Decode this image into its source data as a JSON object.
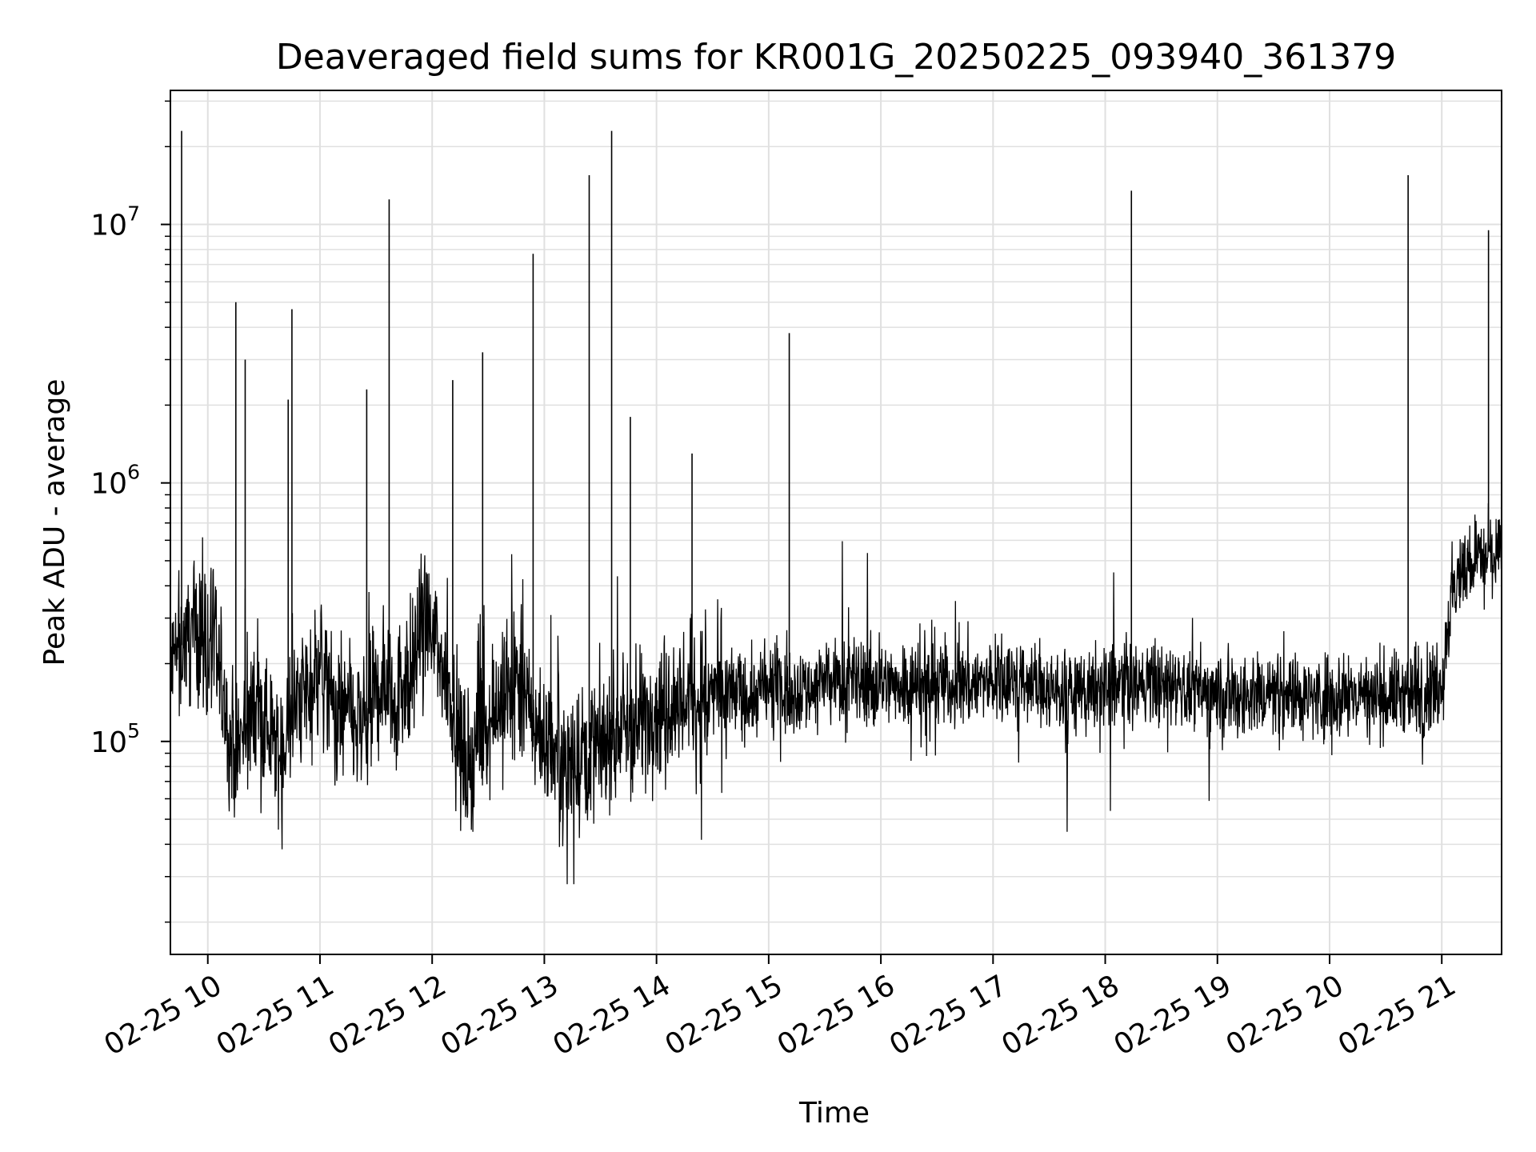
{
  "chart_data": {
    "type": "line",
    "title": "Deaveraged field sums for KR001G_20250225_093940_361379",
    "xlabel": "Time",
    "ylabel": "Peak ADU - average",
    "x_tick_labels": [
      "02-25 10",
      "02-25 11",
      "02-25 12",
      "02-25 13",
      "02-25 14",
      "02-25 15",
      "02-25 16",
      "02-25 17",
      "02-25 18",
      "02-25 19",
      "02-25 20",
      "02-25 21"
    ],
    "y_tick_labels": [
      {
        "base": "10",
        "exp": "5",
        "value": 100000
      },
      {
        "base": "10",
        "exp": "6",
        "value": 1000000
      },
      {
        "base": "10",
        "exp": "7",
        "value": 10000000
      }
    ],
    "yscale": "log",
    "ylim": [
      15000,
      33000000
    ],
    "xlim": [
      "2025-02-25 09:40",
      "2025-02-25 21:32"
    ],
    "grid": true,
    "line_color": "#000000",
    "grid_color": "#e0e0e0",
    "series": [
      {
        "name": "",
        "points": [
          [
            "2025-02-25 09:40",
            180000
          ],
          [
            "2025-02-25 09:45",
            230000
          ],
          [
            "2025-02-25 09:50",
            260000
          ],
          [
            "2025-02-25 09:55",
            280000
          ],
          [
            "2025-02-25 10:00",
            240000
          ],
          [
            "2025-02-25 10:05",
            200000
          ],
          [
            "2025-02-25 10:10",
            120000
          ],
          [
            "2025-02-25 10:15",
            90000
          ],
          [
            "2025-02-25 10:20",
            110000
          ],
          [
            "2025-02-25 10:25",
            140000
          ],
          [
            "2025-02-25 10:30",
            120000
          ],
          [
            "2025-02-25 10:35",
            100000
          ],
          [
            "2025-02-25 10:40",
            90000
          ],
          [
            "2025-02-25 10:45",
            120000
          ],
          [
            "2025-02-25 10:50",
            150000
          ],
          [
            "2025-02-25 10:55",
            170000
          ],
          [
            "2025-02-25 11:00",
            200000
          ],
          [
            "2025-02-25 11:05",
            150000
          ],
          [
            "2025-02-25 11:10",
            120000
          ],
          [
            "2025-02-25 11:15",
            130000
          ],
          [
            "2025-02-25 11:20",
            110000
          ],
          [
            "2025-02-25 11:25",
            120000
          ],
          [
            "2025-02-25 11:30",
            150000
          ],
          [
            "2025-02-25 11:35",
            180000
          ],
          [
            "2025-02-25 11:40",
            150000
          ],
          [
            "2025-02-25 11:45",
            170000
          ],
          [
            "2025-02-25 11:50",
            200000
          ],
          [
            "2025-02-25 11:55",
            280000
          ],
          [
            "2025-02-25 12:00",
            260000
          ],
          [
            "2025-02-25 12:05",
            200000
          ],
          [
            "2025-02-25 12:10",
            160000
          ],
          [
            "2025-02-25 12:15",
            90000
          ],
          [
            "2025-02-25 12:20",
            80000
          ],
          [
            "2025-02-25 12:25",
            110000
          ],
          [
            "2025-02-25 12:30",
            130000
          ],
          [
            "2025-02-25 12:35",
            140000
          ],
          [
            "2025-02-25 12:40",
            150000
          ],
          [
            "2025-02-25 12:45",
            170000
          ],
          [
            "2025-02-25 12:50",
            140000
          ],
          [
            "2025-02-25 12:55",
            120000
          ],
          [
            "2025-02-25 13:00",
            100000
          ],
          [
            "2025-02-25 13:05",
            95000
          ],
          [
            "2025-02-25 13:10",
            90000
          ],
          [
            "2025-02-25 13:15",
            85000
          ],
          [
            "2025-02-25 13:20",
            90000
          ],
          [
            "2025-02-25 13:25",
            95000
          ],
          [
            "2025-02-25 13:30",
            100000
          ],
          [
            "2025-02-25 13:35",
            105000
          ],
          [
            "2025-02-25 13:40",
            110000
          ],
          [
            "2025-02-25 13:45",
            115000
          ],
          [
            "2025-02-25 13:50",
            120000
          ],
          [
            "2025-02-25 13:55",
            130000
          ],
          [
            "2025-02-25 14:00",
            140000
          ],
          [
            "2025-02-25 14:10",
            145000
          ],
          [
            "2025-02-25 14:20",
            150000
          ],
          [
            "2025-02-25 14:30",
            150000
          ],
          [
            "2025-02-25 14:40",
            155000
          ],
          [
            "2025-02-25 14:50",
            150000
          ],
          [
            "2025-02-25 15:00",
            160000
          ],
          [
            "2025-02-25 15:10",
            165000
          ],
          [
            "2025-02-25 15:20",
            160000
          ],
          [
            "2025-02-25 15:30",
            170000
          ],
          [
            "2025-02-25 15:40",
            165000
          ],
          [
            "2025-02-25 15:50",
            170000
          ],
          [
            "2025-02-25 16:00",
            165000
          ],
          [
            "2025-02-25 16:10",
            170000
          ],
          [
            "2025-02-25 16:20",
            165000
          ],
          [
            "2025-02-25 16:30",
            170000
          ],
          [
            "2025-02-25 16:40",
            165000
          ],
          [
            "2025-02-25 16:50",
            170000
          ],
          [
            "2025-02-25 17:00",
            170000
          ],
          [
            "2025-02-25 17:10",
            165000
          ],
          [
            "2025-02-25 17:20",
            170000
          ],
          [
            "2025-02-25 17:30",
            160000
          ],
          [
            "2025-02-25 17:40",
            155000
          ],
          [
            "2025-02-25 17:50",
            155000
          ],
          [
            "2025-02-25 18:00",
            160000
          ],
          [
            "2025-02-25 18:10",
            165000
          ],
          [
            "2025-02-25 18:20",
            170000
          ],
          [
            "2025-02-25 18:30",
            165000
          ],
          [
            "2025-02-25 18:40",
            160000
          ],
          [
            "2025-02-25 18:50",
            155000
          ],
          [
            "2025-02-25 19:00",
            155000
          ],
          [
            "2025-02-25 19:10",
            150000
          ],
          [
            "2025-02-25 19:20",
            155000
          ],
          [
            "2025-02-25 19:30",
            160000
          ],
          [
            "2025-02-25 19:40",
            155000
          ],
          [
            "2025-02-25 19:50",
            150000
          ],
          [
            "2025-02-25 20:00",
            150000
          ],
          [
            "2025-02-25 20:10",
            155000
          ],
          [
            "2025-02-25 20:20",
            150000
          ],
          [
            "2025-02-25 20:30",
            150000
          ],
          [
            "2025-02-25 20:40",
            155000
          ],
          [
            "2025-02-25 20:50",
            150000
          ],
          [
            "2025-02-25 21:00",
            170000
          ],
          [
            "2025-02-25 21:05",
            350000
          ],
          [
            "2025-02-25 21:10",
            450000
          ],
          [
            "2025-02-25 21:15",
            500000
          ],
          [
            "2025-02-25 21:20",
            520000
          ],
          [
            "2025-02-25 21:25",
            540000
          ],
          [
            "2025-02-25 21:32",
            560000
          ]
        ]
      }
    ],
    "spikes": [
      [
        "2025-02-25 09:46",
        23000000
      ],
      [
        "2025-02-25 10:15",
        5000000
      ],
      [
        "2025-02-25 10:20",
        3000000
      ],
      [
        "2025-02-25 10:45",
        4700000
      ],
      [
        "2025-02-25 10:43",
        2100000
      ],
      [
        "2025-02-25 11:25",
        2300000
      ],
      [
        "2025-02-25 11:37",
        12500000
      ],
      [
        "2025-02-25 12:11",
        2500000
      ],
      [
        "2025-02-25 12:27",
        3200000
      ],
      [
        "2025-02-25 12:54",
        7700000
      ],
      [
        "2025-02-25 13:24",
        15500000
      ],
      [
        "2025-02-25 13:36",
        23000000
      ],
      [
        "2025-02-25 13:46",
        1800000
      ],
      [
        "2025-02-25 14:19",
        1300000
      ],
      [
        "2025-02-25 15:11",
        3800000
      ],
      [
        "2025-02-25 18:14",
        13500000
      ],
      [
        "2025-02-25 20:42",
        15500000
      ],
      [
        "2025-02-25 21:25",
        9500000
      ]
    ]
  }
}
